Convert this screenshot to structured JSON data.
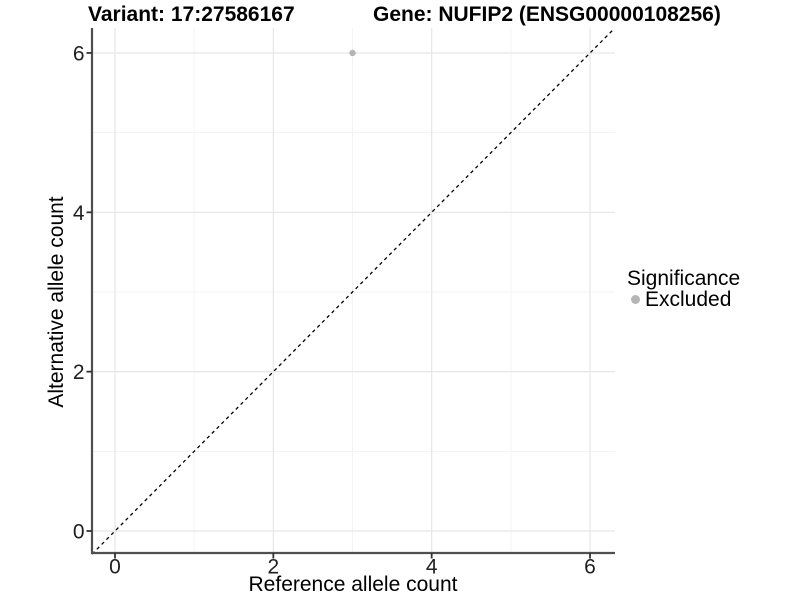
{
  "header": {
    "variant_title": "Variant: 17:27586167",
    "gene_title": "Gene: NUFIP2 (ENSG00000108256)"
  },
  "chart_data": {
    "type": "scatter",
    "title": "",
    "xlabel": "Reference allele count",
    "ylabel": "Alternative allele count",
    "xlim": [
      -0.29,
      6.31
    ],
    "ylim": [
      -0.29,
      6.31
    ],
    "x_ticks": [
      0,
      2,
      4,
      6
    ],
    "y_ticks": [
      0,
      2,
      4,
      6
    ],
    "minor_gridlines": [
      1,
      3,
      5
    ],
    "grid": true,
    "identity_line": {
      "equation": "y = x",
      "style": "dashed",
      "color": "#000000"
    },
    "series": [
      {
        "name": "Excluded",
        "color": "#b5b5b5",
        "points": [
          [
            3,
            6
          ]
        ]
      }
    ],
    "legend": {
      "title": "Significance",
      "position": "right",
      "entries": [
        {
          "label": "Excluded",
          "color": "#b5b5b5",
          "marker": "circle"
        }
      ]
    }
  },
  "colors": {
    "background": "#ffffff",
    "grid_major": "#e6e6e6",
    "grid_minor": "#f3f3f3",
    "axis_line": "#4f4f4f",
    "tick_mark": "#333333",
    "tick_label": "#1f1f1f",
    "title_text": "#000000"
  }
}
